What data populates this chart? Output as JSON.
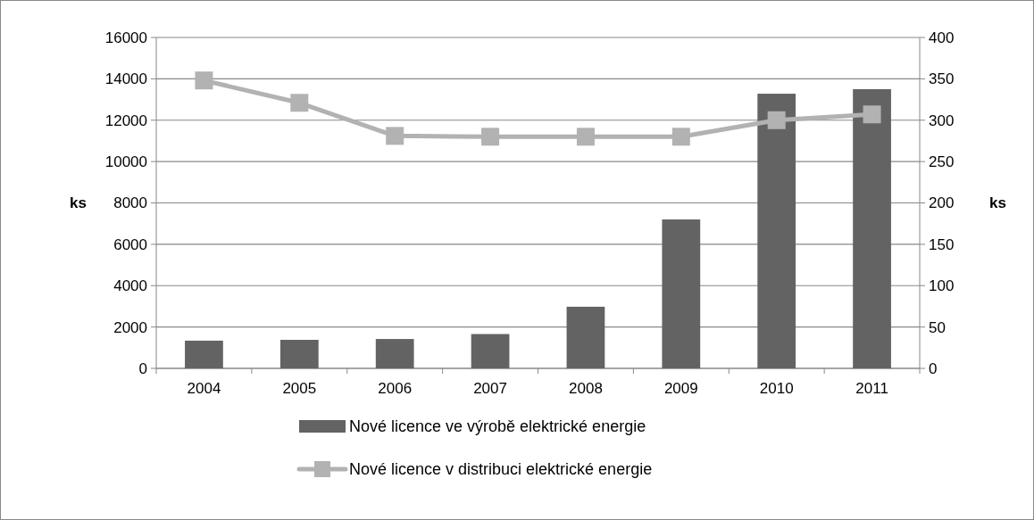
{
  "chart_data": {
    "type": "bar",
    "categories": [
      "2004",
      "2005",
      "2006",
      "2007",
      "2008",
      "2009",
      "2010",
      "2011"
    ],
    "series": [
      {
        "name": "Nové licence ve výrobě elektrické energie",
        "color": "#636363",
        "values": [
          1340,
          1380,
          1420,
          1660,
          2980,
          7200,
          13280,
          13500
        ]
      },
      {
        "name": "Nové licence v distribuci elektrické energie",
        "type": "line",
        "axis": "y2",
        "color": "#b2b2b2",
        "marker": "square",
        "values": [
          348,
          321,
          281,
          280,
          280,
          280,
          300,
          307
        ]
      }
    ],
    "ylabel": "ks",
    "y2label": "ks",
    "ylim": [
      0,
      16000
    ],
    "yticks": [
      0,
      2000,
      4000,
      6000,
      8000,
      10000,
      12000,
      14000,
      16000
    ],
    "y2lim": [
      0,
      400
    ],
    "y2ticks": [
      0,
      50,
      100,
      150,
      200,
      250,
      300,
      350,
      400
    ],
    "grid": "y",
    "legend": "bottom"
  }
}
